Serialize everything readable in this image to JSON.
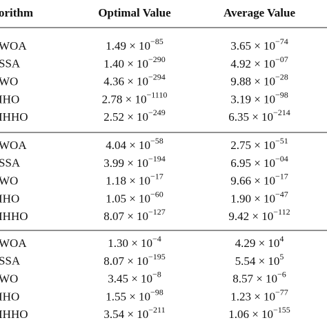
{
  "table": {
    "header": [
      "orithm",
      "Optimal Value",
      "Average Value"
    ],
    "groups": [
      {
        "rows": [
          {
            "algorithm": "WOA",
            "optimal": {
              "base": "1.49 × 10",
              "exp": "−85"
            },
            "average": {
              "base": "3.65 × 10",
              "exp": "−74"
            }
          },
          {
            "algorithm": "SSA",
            "optimal": {
              "base": "1.40 × 10",
              "exp": "−290"
            },
            "average": {
              "base": "4.92 × 10",
              "exp": "−07"
            }
          },
          {
            "algorithm": "WO",
            "optimal": {
              "base": "4.36 × 10",
              "exp": "−294"
            },
            "average": {
              "base": "9.88 × 10",
              "exp": "−28"
            }
          },
          {
            "algorithm": "IHO",
            "optimal": {
              "base": "2.78 × 10",
              "exp": "−1110"
            },
            "average": {
              "base": "3.19 × 10",
              "exp": "−98"
            }
          },
          {
            "algorithm": "IHHO",
            "optimal": {
              "base": "2.52 × 10",
              "exp": "−249"
            },
            "average": {
              "base": "6.35 × 10",
              "exp": "−214"
            }
          }
        ]
      },
      {
        "rows": [
          {
            "algorithm": "WOA",
            "optimal": {
              "base": "4.04 × 10",
              "exp": "−58"
            },
            "average": {
              "base": "2.75 × 10",
              "exp": "−51"
            }
          },
          {
            "algorithm": "SSA",
            "optimal": {
              "base": "3.99 × 10",
              "exp": "−194"
            },
            "average": {
              "base": "6.95 × 10",
              "exp": "−04"
            }
          },
          {
            "algorithm": "WO",
            "optimal": {
              "base": "1.18 × 10",
              "exp": "−17"
            },
            "average": {
              "base": "9.66 × 10",
              "exp": "−17"
            }
          },
          {
            "algorithm": "IHO",
            "optimal": {
              "base": "1.05 × 10",
              "exp": "−60"
            },
            "average": {
              "base": "1.90 × 10",
              "exp": "−47"
            }
          },
          {
            "algorithm": "IHHO",
            "optimal": {
              "base": "8.07 × 10",
              "exp": "−127"
            },
            "average": {
              "base": "9.42 × 10",
              "exp": "−112"
            }
          }
        ]
      },
      {
        "rows": [
          {
            "algorithm": "WOA",
            "optimal": {
              "base": "1.30 × 10",
              "exp": "−4"
            },
            "average": {
              "base": "4.29 × 10",
              "exp": "4"
            }
          },
          {
            "algorithm": "SSA",
            "optimal": {
              "base": "8.07 × 10",
              "exp": "−195"
            },
            "average": {
              "base": "5.54 × 10",
              "exp": "5"
            }
          },
          {
            "algorithm": "WO",
            "optimal": {
              "base": "3.45 × 10",
              "exp": "−8"
            },
            "average": {
              "base": "8.57 × 10",
              "exp": "−6"
            }
          },
          {
            "algorithm": "IHO",
            "optimal": {
              "base": "1.55 × 10",
              "exp": "−98"
            },
            "average": {
              "base": "1.23 × 10",
              "exp": "−77"
            }
          },
          {
            "algorithm": "IHHO",
            "optimal": {
              "base": "3.54 × 10",
              "exp": "−211"
            },
            "average": {
              "base": "1.06 × 10",
              "exp": "−155"
            }
          }
        ]
      }
    ]
  }
}
